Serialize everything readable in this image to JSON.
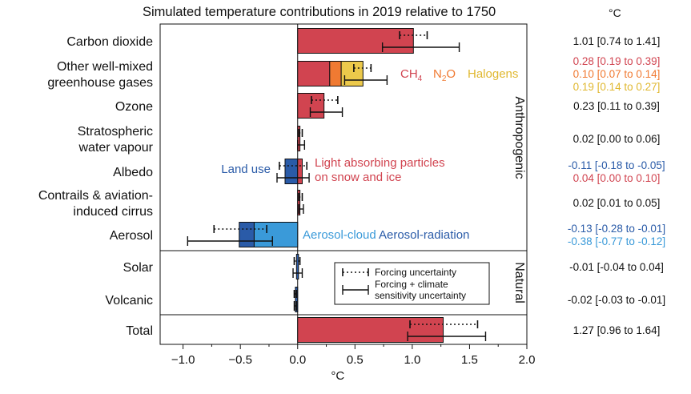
{
  "chart_data": {
    "type": "bar",
    "orientation": "horizontal",
    "title": "Simulated temperature contributions in 2019 relative to 1750",
    "xlabel": "°C",
    "values_column_header": "°C",
    "xlim": [
      -1.2,
      2.0
    ],
    "xticks": [
      "−1.0",
      "−0.5",
      "0.0",
      "0.5",
      "1.0",
      "1.5",
      "2.0"
    ],
    "xtick_values": [
      -1.0,
      -0.5,
      0.0,
      0.5,
      1.0,
      1.5,
      2.0
    ],
    "group_labels": [
      "Anthropogenic",
      "Natural"
    ],
    "categories": [
      {
        "label": [
          "Carbon dioxide"
        ],
        "group": "Anthropogenic",
        "segments": [
          {
            "name": "",
            "value": 1.01,
            "color": "#d14450"
          }
        ],
        "forcing_uncertainty": [
          0.89,
          1.13
        ],
        "total_uncertainty": [
          0.74,
          1.41
        ],
        "values_text": [
          {
            "text": "1.01 [0.74 to 1.41]",
            "color": "#111111"
          }
        ]
      },
      {
        "label": [
          "Other well-mixed",
          "greenhouse gases"
        ],
        "group": "Anthropogenic",
        "segments": [
          {
            "name": "CH₄",
            "value": 0.28,
            "color": "#d14450"
          },
          {
            "name": "N₂O",
            "value": 0.1,
            "color": "#f07a32"
          },
          {
            "name": "Halogens",
            "value": 0.19,
            "color": "#ecc94b"
          }
        ],
        "forcing_uncertainty": [
          0.49,
          0.64
        ],
        "total_uncertainty": [
          0.41,
          0.78
        ],
        "values_text": [
          {
            "text": "0.28 [0.19 to 0.39]",
            "color": "#d14450"
          },
          {
            "text": "0.10 [0.07 to 0.14]",
            "color": "#f07a32"
          },
          {
            "text": "0.19 [0.14 to 0.27]",
            "color": "#e0b830"
          }
        ]
      },
      {
        "label": [
          "Ozone"
        ],
        "group": "Anthropogenic",
        "segments": [
          {
            "name": "",
            "value": 0.23,
            "color": "#d14450"
          }
        ],
        "forcing_uncertainty": [
          0.12,
          0.35
        ],
        "total_uncertainty": [
          0.11,
          0.39
        ],
        "values_text": [
          {
            "text": "0.23 [0.11 to 0.39]",
            "color": "#111111"
          }
        ]
      },
      {
        "label": [
          "Stratospheric",
          "water vapour"
        ],
        "group": "Anthropogenic",
        "segments": [
          {
            "name": "",
            "value": 0.02,
            "color": "#d14450"
          }
        ],
        "forcing_uncertainty": [
          0.01,
          0.04
        ],
        "total_uncertainty": [
          0.0,
          0.06
        ],
        "values_text": [
          {
            "text": "0.02 [0.00 to 0.06]",
            "color": "#111111"
          }
        ]
      },
      {
        "label": [
          "Albedo"
        ],
        "group": "Anthropogenic",
        "segments": [
          {
            "name": "Land use",
            "value": -0.11,
            "color": "#2a5ba8"
          },
          {
            "name": "Light absorbing particles on snow and ice",
            "value": 0.04,
            "color": "#d14450"
          }
        ],
        "forcing_uncertainty": [
          -0.16,
          0.08
        ],
        "total_uncertainty": [
          -0.18,
          0.1
        ],
        "values_text": [
          {
            "text": "-0.11 [-0.18 to -0.05]",
            "color": "#2a5ba8"
          },
          {
            "text": "0.04 [0.00 to 0.10]",
            "color": "#d14450"
          }
        ]
      },
      {
        "label": [
          "Contrails & aviation-",
          "induced cirrus"
        ],
        "group": "Anthropogenic",
        "segments": [
          {
            "name": "",
            "value": 0.02,
            "color": "#d14450"
          }
        ],
        "forcing_uncertainty": [
          0.01,
          0.04
        ],
        "total_uncertainty": [
          0.01,
          0.05
        ],
        "values_text": [
          {
            "text": "0.02 [0.01 to 0.05]",
            "color": "#111111"
          }
        ]
      },
      {
        "label": [
          "Aerosol"
        ],
        "group": "Anthropogenic",
        "segments": [
          {
            "name": "Aerosol-cloud",
            "value": -0.38,
            "color": "#3a9ad9"
          },
          {
            "name": "Aerosol-radiation",
            "value": -0.13,
            "color": "#2a5ba8"
          }
        ],
        "forcing_uncertainty": [
          -0.73,
          -0.27
        ],
        "total_uncertainty": [
          -0.96,
          -0.22
        ],
        "values_text": [
          {
            "text": "-0.13 [-0.28 to -0.01]",
            "color": "#2a5ba8"
          },
          {
            "text": "-0.38 [-0.77 to -0.12]",
            "color": "#3a9ad9"
          }
        ]
      },
      {
        "label": [
          "Solar"
        ],
        "group": "Natural",
        "segments": [
          {
            "name": "",
            "value": -0.01,
            "color": "#2a5ba8"
          }
        ],
        "forcing_uncertainty": [
          -0.03,
          0.02
        ],
        "total_uncertainty": [
          -0.04,
          0.04
        ],
        "values_text": [
          {
            "text": "-0.01 [-0.04 to 0.04]",
            "color": "#111111"
          }
        ]
      },
      {
        "label": [
          "Volcanic"
        ],
        "group": "Natural",
        "segments": [
          {
            "name": "",
            "value": -0.02,
            "color": "#2a5ba8"
          }
        ],
        "forcing_uncertainty": [
          -0.03,
          -0.01
        ],
        "total_uncertainty": [
          -0.03,
          -0.01
        ],
        "values_text": [
          {
            "text": "-0.02 [-0.03 to -0.01]",
            "color": "#111111"
          }
        ]
      },
      {
        "label": [
          "Total"
        ],
        "group": "",
        "segments": [
          {
            "name": "",
            "value": 1.27,
            "color": "#d14450"
          }
        ],
        "forcing_uncertainty": [
          0.98,
          1.57
        ],
        "total_uncertainty": [
          0.96,
          1.64
        ],
        "values_text": [
          {
            "text": "1.27 [0.96 to 1.64]",
            "color": "#111111"
          }
        ]
      }
    ],
    "segment_annotations": [
      {
        "text": "CH",
        "sub": "4",
        "color": "#d14450"
      },
      {
        "text": "N",
        "sub": "2",
        "text2": "O",
        "color": "#f07a32"
      },
      {
        "text": "Halogens",
        "color": "#e0b830"
      },
      {
        "text": "Land use",
        "color": "#2a5ba8"
      },
      {
        "lines": [
          "Light absorbing particles",
          "on snow and ice"
        ],
        "color": "#d14450"
      },
      {
        "text": "Aerosol-cloud",
        "color": "#3a9ad9"
      },
      {
        "text": "Aerosol-radiation",
        "color": "#2a5ba8"
      }
    ],
    "legend": {
      "position": "inside-lower-right",
      "entries": [
        {
          "style": "dotted",
          "label": [
            "Forcing uncertainty"
          ]
        },
        {
          "style": "solid",
          "label": [
            "Forcing + climate",
            "sensitivity uncertainty"
          ]
        }
      ]
    },
    "grid": false
  }
}
